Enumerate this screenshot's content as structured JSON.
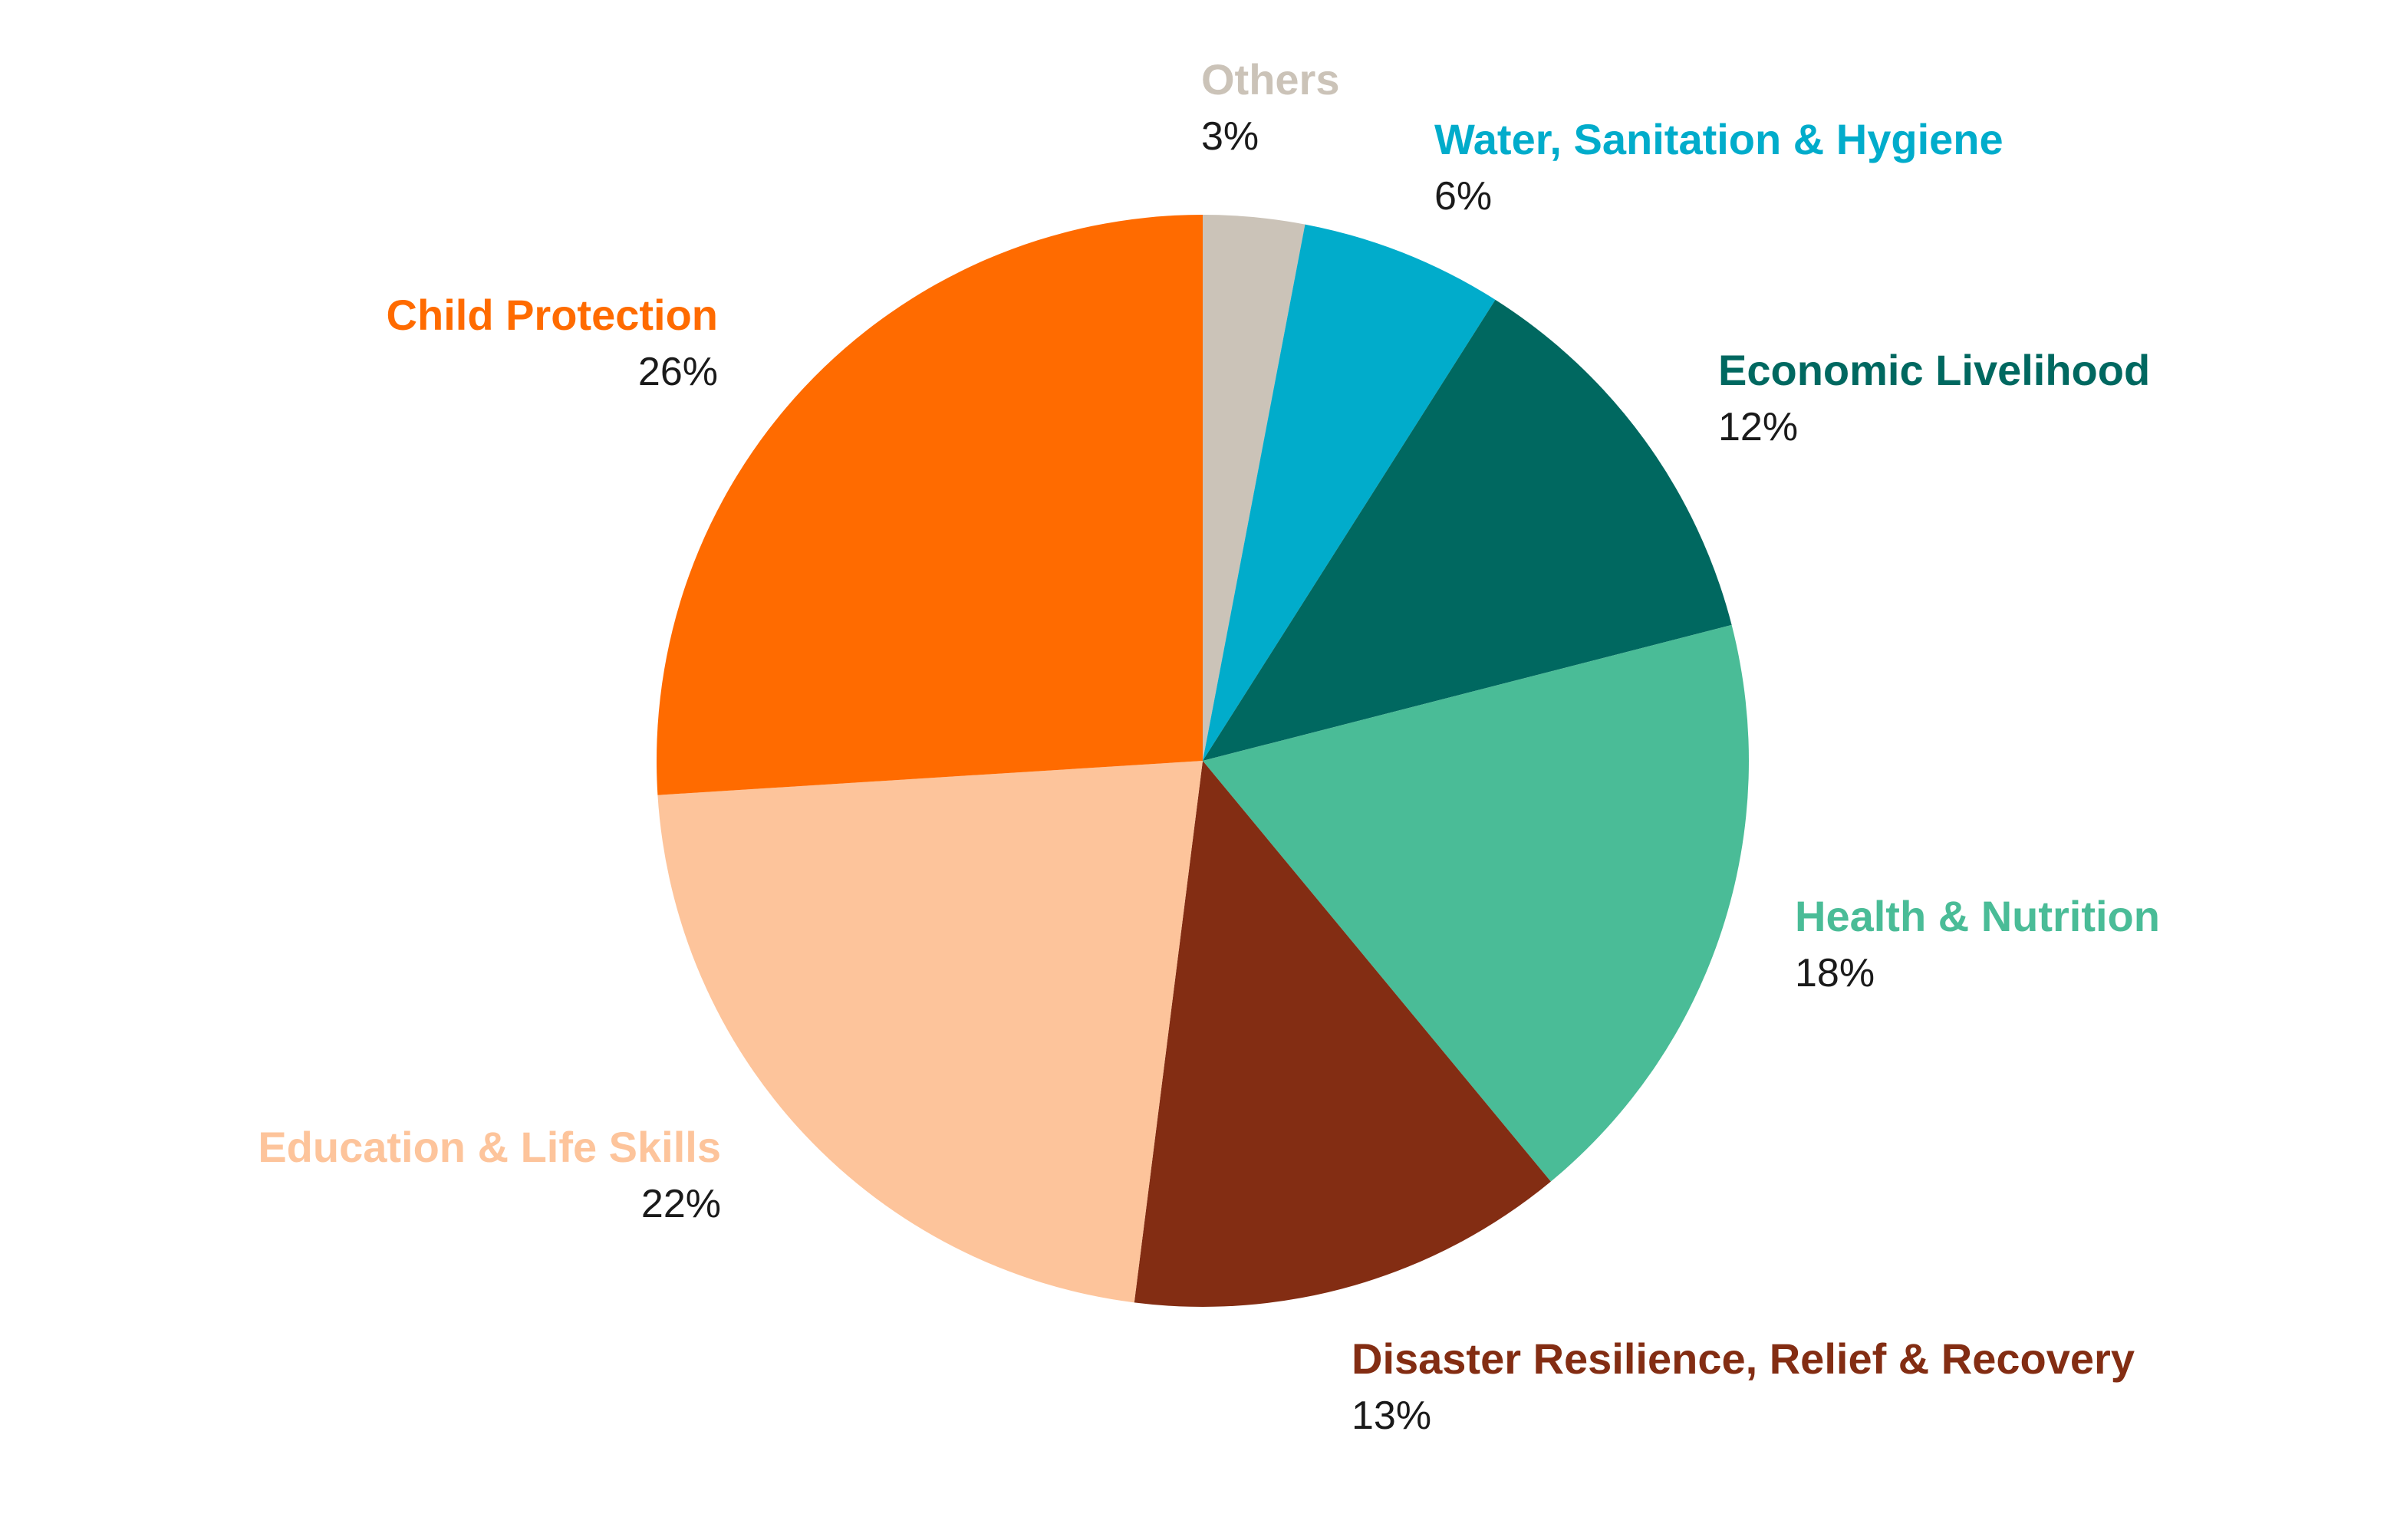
{
  "chart_data": {
    "type": "pie",
    "title": "",
    "start_angle_deg": 0,
    "direction": "clockwise",
    "legend": "none (slice labels placed around the pie)",
    "slices": [
      {
        "name": "Others",
        "value": 3,
        "value_label": "3%",
        "color": "#cbc3b8"
      },
      {
        "name": "Water, Sanitation & Hygiene",
        "value": 6,
        "value_label": "6%",
        "color": "#01accb"
      },
      {
        "name": "Economic Livelihood",
        "value": 12,
        "value_label": "12%",
        "color": "#006860"
      },
      {
        "name": "Health & Nutrition",
        "value": 18,
        "value_label": "18%",
        "color": "#4abc97"
      },
      {
        "name": "Disaster Resilience, Relief & Recovery",
        "value": 13,
        "value_label": "13%",
        "color": "#832d13"
      },
      {
        "name": "Education & Life Skills",
        "value": 22,
        "value_label": "22%",
        "color": "#fdc49b"
      },
      {
        "name": "Child Protection",
        "value": 26,
        "value_label": "26%",
        "color": "#ff6b00"
      }
    ]
  }
}
